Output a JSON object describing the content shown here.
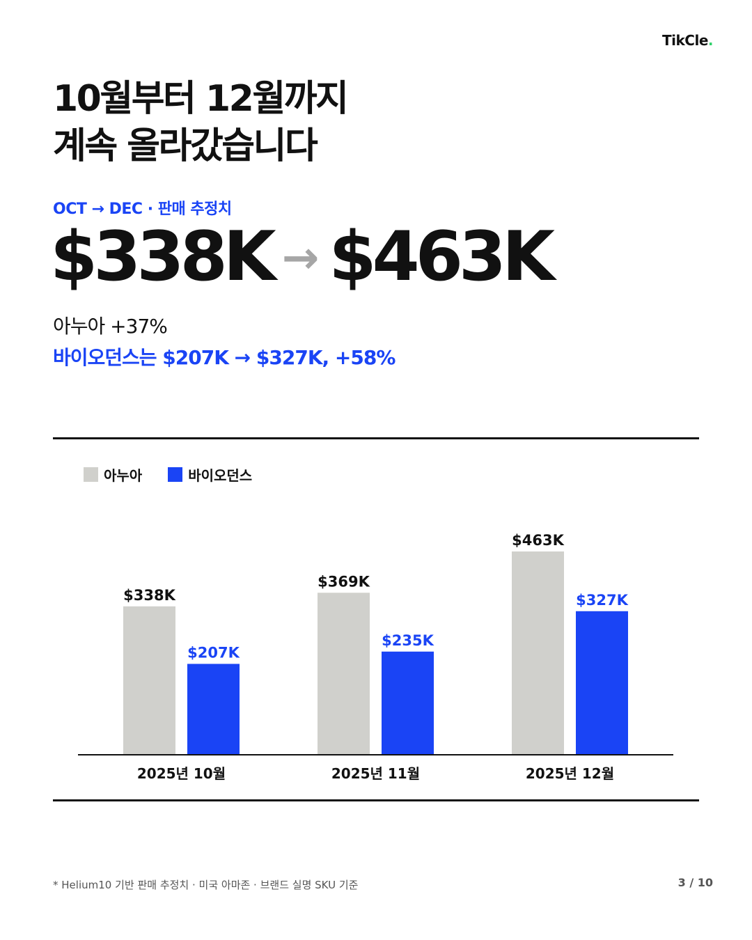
{
  "brand": {
    "logo_text": "TikCle",
    "logo_dot": ".",
    "dot_color": "#2fd16a"
  },
  "title": {
    "line1": "10월부터 12월까지",
    "line2": "계속 올라갔습니다"
  },
  "kicker": "OCT → DEC · 판매 추정치",
  "headline": {
    "from": "$338K",
    "arrow": "→",
    "to": "$463K"
  },
  "summary": {
    "line1": "아누아 +37%",
    "line2": "바이오던스는 $207K → $327K, +58%"
  },
  "colors": {
    "accent": "#1a44f5",
    "gray_bar": "#d0d0cc",
    "text": "#111111"
  },
  "chart_data": {
    "type": "bar",
    "categories": [
      "2025년 10월",
      "2025년 11월",
      "2025년 12월"
    ],
    "series": [
      {
        "name": "아누아",
        "values": [
          338,
          369,
          463
        ],
        "labels": [
          "$338K",
          "$369K",
          "$463K"
        ],
        "color": "#d0d0cc",
        "label_color": "#111111"
      },
      {
        "name": "바이오던스",
        "values": [
          207,
          235,
          327
        ],
        "labels": [
          "$207K",
          "$235K",
          "$327K"
        ],
        "color": "#1a44f5",
        "label_color": "#1a44f5"
      }
    ],
    "unit": "K USD",
    "legend": "top-left",
    "grid": false
  },
  "footnote": "* Helium10 기반 판매 추정치 · 미국 아마존 · 브랜드 실명 SKU 기준",
  "pager": "3 / 10"
}
